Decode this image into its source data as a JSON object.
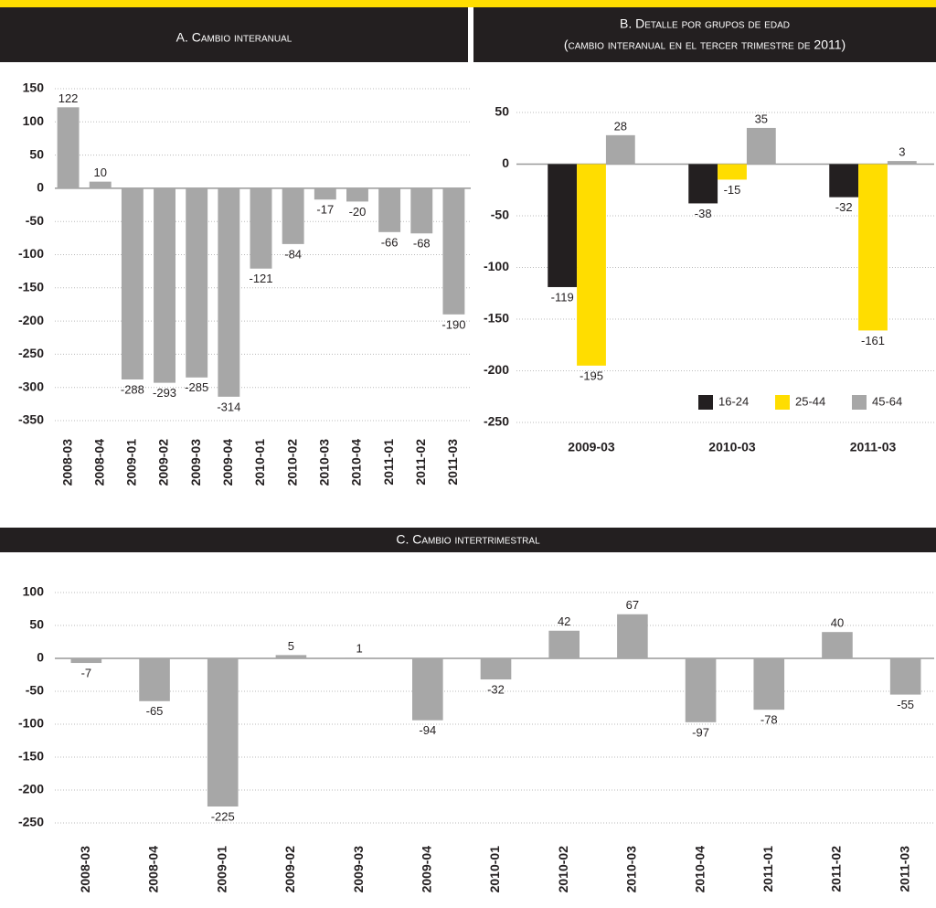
{
  "chart_data": [
    {
      "type": "bar",
      "title": "A. Cambio interanual",
      "categories": [
        "2008-03",
        "2008-04",
        "2009-01",
        "2009-02",
        "2009-03",
        "2009-04",
        "2010-01",
        "2010-02",
        "2010-03",
        "2010-04",
        "2011-01",
        "2011-02",
        "2011-03"
      ],
      "values": [
        122,
        10,
        -288,
        -293,
        -285,
        -314,
        -121,
        -84,
        -17,
        -20,
        -66,
        -68,
        -190
      ],
      "color": "#a7a7a7",
      "ylim": [
        -350,
        150
      ],
      "yticks": [
        150,
        100,
        50,
        0,
        -50,
        -100,
        -150,
        -200,
        -250,
        -300,
        -350
      ],
      "grid": true
    },
    {
      "type": "grouped-bar",
      "title": "B. Detalle por grupos de edad",
      "subtitle": "(cambio interanual en el tercer trimestre de 2011)",
      "categories": [
        "2009-03",
        "2010-03",
        "2011-03"
      ],
      "series": [
        {
          "name": "16-24",
          "color": "#231f20",
          "values": [
            -119,
            -38,
            -32
          ]
        },
        {
          "name": "25-44",
          "color": "#ffdd00",
          "values": [
            -195,
            -15,
            -161
          ]
        },
        {
          "name": "45-64",
          "color": "#a7a7a7",
          "values": [
            28,
            35,
            3
          ]
        }
      ],
      "ylim": [
        -250,
        50
      ],
      "yticks": [
        50,
        0,
        -50,
        -100,
        -150,
        -200,
        -250
      ],
      "grid": true,
      "legend": "bottom-right"
    },
    {
      "type": "bar",
      "title": "C. Cambio intertrimestral",
      "categories": [
        "2008-03",
        "2008-04",
        "2009-01",
        "2009-02",
        "2009-03",
        "2009-04",
        "2010-01",
        "2010-02",
        "2010-03",
        "2010-04",
        "2011-01",
        "2011-02",
        "2011-03"
      ],
      "values": [
        -7,
        -65,
        -225,
        5,
        1,
        -94,
        -32,
        42,
        67,
        -97,
        -78,
        40,
        -55
      ],
      "color": "#a7a7a7",
      "ylim": [
        -250,
        100
      ],
      "yticks": [
        100,
        50,
        0,
        -50,
        -100,
        -150,
        -200,
        -250
      ],
      "grid": true
    }
  ]
}
